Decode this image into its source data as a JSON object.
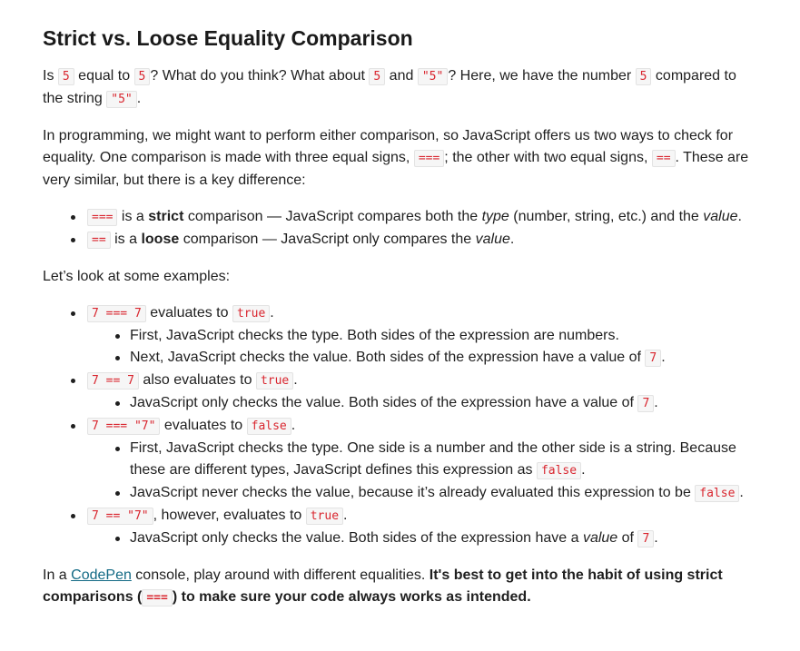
{
  "title": "Strict vs. Loose Equality Comparison",
  "intro": {
    "t1": "Is ",
    "c1": "5",
    "t2": " equal to ",
    "c2": "5",
    "t3": "? What do you think? What about ",
    "c3": "5",
    "t4": " and ",
    "c4": "\"5\"",
    "t5": "? Here, we have the number ",
    "c5": "5",
    "t6": " compared to the string ",
    "c6": "\"5\"",
    "t7": "."
  },
  "programming": {
    "t1": "In programming, we might want to perform either comparison, so JavaScript offers us two ways to check for equality. One comparison is made with three equal signs, ",
    "c1": "===",
    "t2": "; the other with two equal signs, ",
    "c2": "==",
    "t3": ". These are very similar, but there is a key difference:"
  },
  "differences": [
    {
      "code": "===",
      "t1": " is a ",
      "b1": "strict",
      "t2": " comparison — JavaScript compares both the ",
      "e1": "type",
      "t3": " (number, string, etc.) and the ",
      "e2": "value",
      "t4": "."
    },
    {
      "code": "==",
      "t1": " is a ",
      "b1": "loose",
      "t2": " comparison — JavaScript only compares the ",
      "e1": "value",
      "t3": "."
    }
  ],
  "lets_look": "Let’s look at some examples:",
  "examples": [
    {
      "code": "7 === 7",
      "text": " evaluates to ",
      "result": "true",
      "end": ".",
      "sub": [
        {
          "text": "First, JavaScript checks the type. Both sides of the expression are numbers."
        },
        {
          "text": "Next, JavaScript checks the value. Both sides of the expression have a value of ",
          "code": "7",
          "end": "."
        }
      ]
    },
    {
      "code": "7 == 7",
      "text": " also evaluates to ",
      "result": "true",
      "end": ".",
      "sub": [
        {
          "text": "JavaScript only checks the value. Both sides of the expression have a value of ",
          "code": "7",
          "end": "."
        }
      ]
    },
    {
      "code": "7 === \"7\"",
      "text": " evaluates to ",
      "result": "false",
      "end": ".",
      "sub": [
        {
          "text": "First, JavaScript checks the type. One side is a number and the other side is a string. Because these are different types, JavaScript defines this expression as ",
          "code": "false",
          "end": "."
        },
        {
          "text": "JavaScript never checks the value, because it’s already evaluated this expression to be ",
          "code": "false",
          "end": "."
        }
      ]
    },
    {
      "code": "7 == \"7\"",
      "text": ", however, evaluates to ",
      "result": "true",
      "end": ".",
      "sub": [
        {
          "text": "JavaScript only checks the value. Both sides of the expression have a ",
          "em": "value",
          "text2": " of ",
          "code": "7",
          "end": "."
        }
      ]
    }
  ],
  "outro": {
    "t1": "In a ",
    "link": "CodePen",
    "t2": " console, play around with different equalities. ",
    "b1": "It's best to get into the habit of using strict comparisons (",
    "c1": "===",
    "b2": ") to make sure your code always works as intended."
  }
}
